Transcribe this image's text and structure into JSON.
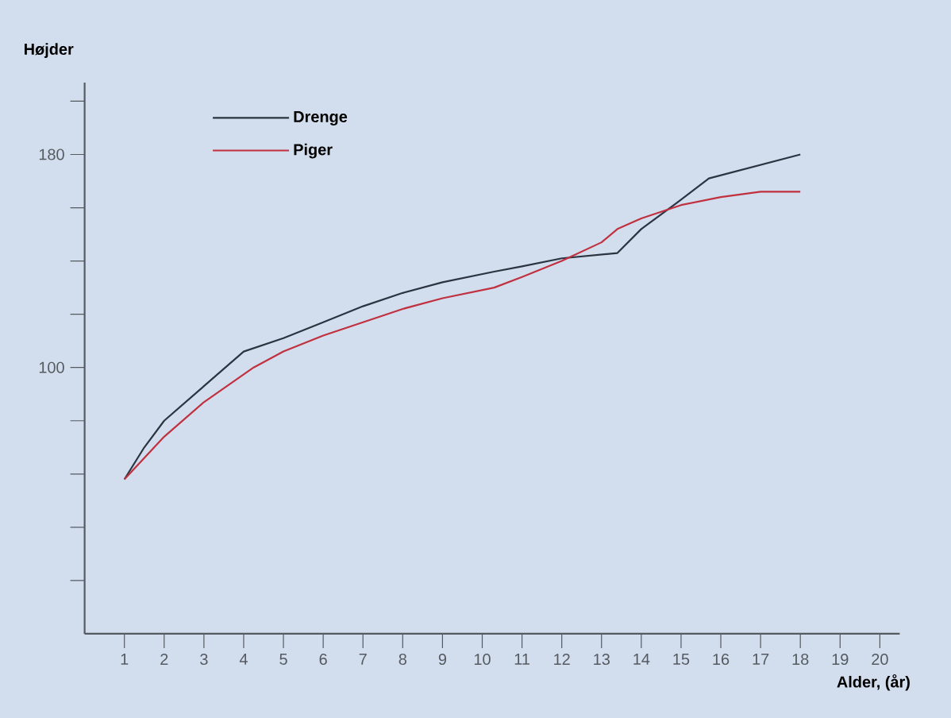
{
  "chart_data": {
    "type": "line",
    "xlabel": "Alder, (år)",
    "ylabel": "Højder",
    "xlim": [
      0,
      20.5
    ],
    "ylim": [
      0,
      207
    ],
    "xticks": [
      1,
      2,
      3,
      4,
      5,
      6,
      7,
      8,
      9,
      10,
      11,
      12,
      13,
      14,
      15,
      16,
      17,
      18,
      19,
      20
    ],
    "yticks": [
      {
        "value": 20,
        "label": null
      },
      {
        "value": 40,
        "label": null
      },
      {
        "value": 60,
        "label": null
      },
      {
        "value": 80,
        "label": null
      },
      100,
      {
        "value": 120,
        "label": null
      },
      {
        "value": 140,
        "label": null
      },
      {
        "value": 160,
        "label": null
      },
      180,
      {
        "value": 200,
        "label": null
      }
    ],
    "legend": "top left",
    "grid": false,
    "marker": "none",
    "line_style": "solid",
    "series": [
      {
        "name": "Drenge",
        "color": "#2b3440",
        "x": [
          1,
          1.5,
          2,
          3,
          4,
          5,
          6,
          7,
          8,
          9,
          10.3,
          11,
          12,
          13.4,
          14,
          15,
          15.7,
          18
        ],
        "values": [
          58,
          70,
          80,
          93,
          106,
          111,
          117,
          123,
          128,
          132,
          136,
          138,
          141,
          143,
          152,
          163,
          171,
          180
        ]
      },
      {
        "name": "Piger",
        "color": "#c0303f",
        "x": [
          1,
          2,
          3,
          4.25,
          5,
          6,
          7,
          8,
          9,
          10.3,
          11,
          12,
          13,
          13.4,
          14,
          15,
          16,
          17,
          18
        ],
        "values": [
          58,
          74,
          87,
          100,
          106,
          112,
          117,
          122,
          126,
          130,
          134,
          140,
          147,
          152,
          156,
          161,
          164,
          166,
          166
        ]
      }
    ]
  }
}
